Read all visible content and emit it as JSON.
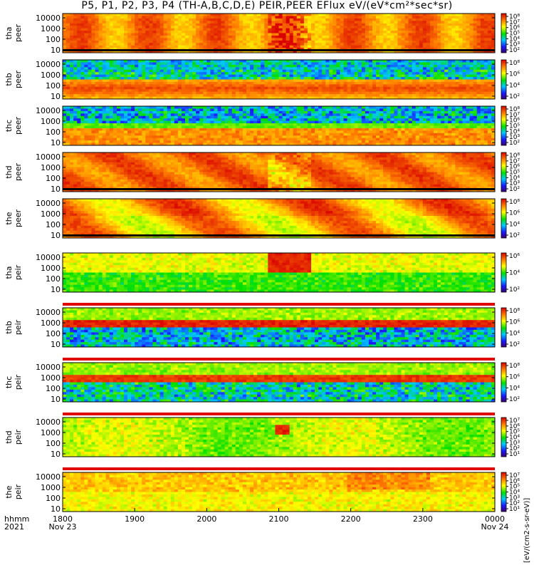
{
  "title": "P5, P1, P2, P3, P4 (TH-A,B,C,D,E) PEIR,PEER EFlux eV/(eV*cm²*sec*sr)",
  "time_axis": {
    "row_label_1": "hhmm",
    "row_label_2": "2021",
    "ticks": [
      "1800",
      "1900",
      "2000",
      "2100",
      "2200",
      "2300",
      "0000"
    ],
    "start_date": "Nov 23",
    "end_date": "Nov 24"
  },
  "colorbar_unit_label": "[eV/(cm2-s-sr-eV)]",
  "chart_data": {
    "type": "heatmap",
    "x_range": [
      "2021-11-23 18:00",
      "2021-11-24 00:00"
    ],
    "y_scale": "log",
    "y_ticks": [
      "10",
      "100",
      "1000",
      "10000"
    ],
    "z_scale": "log",
    "colormap": "rainbow (purple-blue-green-yellow-red)",
    "panels": [
      {
        "probe": "tha",
        "species": "peer",
        "ylabel": [
          "tha",
          "peer"
        ],
        "cbar_ticks": [
          "10⁸",
          "10⁷",
          "10⁶",
          "10⁵",
          "10⁴",
          "10³",
          "10²"
        ],
        "dominant_level": "red-orange high flux"
      },
      {
        "probe": "thb",
        "species": "peer",
        "ylabel": [
          "thb",
          "peer"
        ],
        "cbar_ticks": [
          "10⁸",
          "10⁶",
          "10⁴",
          "10²"
        ],
        "dominant_level": "red band near 10-300 eV"
      },
      {
        "probe": "thc",
        "species": "peer",
        "ylabel": [
          "thc",
          "peer"
        ],
        "cbar_ticks": [
          "10⁸",
          "10⁷",
          "10⁶",
          "10⁵",
          "10⁴",
          "10³",
          "10²"
        ],
        "dominant_level": "orange band near 10-1000 eV"
      },
      {
        "probe": "thd",
        "species": "peer",
        "ylabel": [
          "thd",
          "peer"
        ],
        "cbar_ticks": [
          "10⁸",
          "10⁷",
          "10⁶",
          "10⁵",
          "10⁴",
          "10³",
          "10²"
        ],
        "dominant_level": "orange-red"
      },
      {
        "probe": "the",
        "species": "peer",
        "ylabel": [
          "the",
          "peer"
        ],
        "cbar_ticks": [
          "10⁸",
          "10⁶",
          "10⁴",
          "10²"
        ],
        "dominant_level": "orange-yellow"
      },
      {
        "probe": "tha",
        "species": "peir",
        "ylabel": [
          "tha",
          "peir"
        ],
        "cbar_ticks": [
          "10⁶",
          "10⁴",
          "10²"
        ],
        "dominant_level": "yellow-green, red bursts 2050-2140"
      },
      {
        "probe": "thb",
        "species": "peir",
        "ylabel": [
          "thb",
          "peir"
        ],
        "cbar_ticks": [
          "10⁸",
          "10⁶",
          "10⁴",
          "10²"
        ],
        "dominant_level": "red band near 1000 eV"
      },
      {
        "probe": "thc",
        "species": "peir",
        "ylabel": [
          "thc",
          "peir"
        ],
        "cbar_ticks": [
          "10⁸",
          "10⁶",
          "10⁴",
          "10²"
        ],
        "dominant_level": "red band near 1000 eV"
      },
      {
        "probe": "thd",
        "species": "peir",
        "ylabel": [
          "thd",
          "peir"
        ],
        "cbar_ticks": [
          "10⁷",
          "10⁶",
          "10⁵",
          "10⁴",
          "10³",
          "10²",
          "10¹"
        ],
        "dominant_level": "yellow-green"
      },
      {
        "probe": "the",
        "species": "peir",
        "ylabel": [
          "the",
          "peir"
        ],
        "cbar_ticks": [
          "10⁷",
          "10⁶",
          "10⁵",
          "10⁴",
          "10³",
          "10²",
          "10¹"
        ],
        "dominant_level": "yellow-orange"
      }
    ]
  }
}
